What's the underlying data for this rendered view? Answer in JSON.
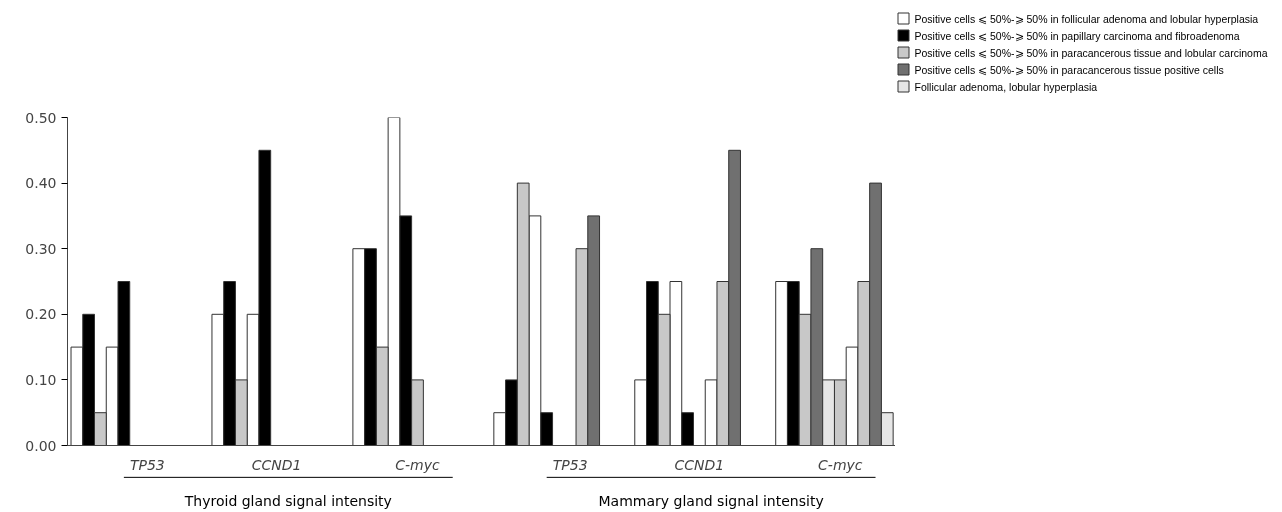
{
  "chart_data": {
    "type": "bar",
    "categories": [
      null,
      null,
      null,
      null,
      null,
      null,
      "TP53",
      null,
      null,
      null,
      null,
      null,
      null,
      null,
      null,
      null,
      null,
      "CCND1",
      null,
      null,
      null,
      null,
      null,
      null,
      null,
      null,
      null,
      null,
      null,
      "C-myc",
      null,
      null,
      null,
      null,
      null,
      null,
      null,
      null,
      null,
      null,
      null,
      null,
      "TP53",
      null,
      null,
      null,
      null,
      null,
      null,
      null,
      null,
      null,
      null,
      "CCND1",
      null,
      null,
      null,
      null,
      null,
      null,
      null,
      null,
      null,
      null,
      null,
      "C-myc",
      null,
      null,
      null,
      null
    ],
    "ylim": [
      0,
      0.5
    ],
    "yticks": [
      {
        "value": 0,
        "label": "0.00"
      },
      {
        "value": 0.1,
        "label": "0.10"
      },
      {
        "value": 0.2,
        "label": "0.20"
      },
      {
        "value": 0.3,
        "label": "0.30"
      },
      {
        "value": 0.4,
        "label": "0.40"
      },
      {
        "value": 0.5,
        "label": "0.50"
      }
    ],
    "series": [
      {
        "name": "Positive cells ⩽ 50%-⩾ 50% in follicular adenoma and lobular hyperplasia",
        "color": "#ffffff",
        "values": [
          0.15,
          null,
          null,
          0.15,
          null,
          null,
          null,
          null,
          null,
          null,
          null,
          null,
          0.2,
          null,
          null,
          0.2,
          null,
          null,
          null,
          null,
          null,
          null,
          null,
          null,
          0.3,
          null,
          null,
          0.5,
          null,
          null,
          null,
          null,
          null,
          null,
          null,
          null,
          0.05,
          null,
          null,
          0.35,
          null,
          null,
          null,
          null,
          null,
          null,
          null,
          null,
          0.1,
          null,
          null,
          0.25,
          null,
          null,
          0.1,
          null,
          null,
          null,
          null,
          null,
          0.25,
          null,
          null,
          null,
          null,
          null,
          0.15,
          null,
          null,
          null
        ]
      },
      {
        "name": "Positive cells ⩽ 50%-⩾ 50% in papillary carcinoma and fibroadenoma",
        "color": "#000000",
        "values": [
          null,
          0.2,
          null,
          null,
          0.25,
          null,
          null,
          null,
          null,
          null,
          null,
          null,
          null,
          0.25,
          null,
          null,
          0.45,
          null,
          null,
          null,
          null,
          null,
          null,
          null,
          null,
          0.3,
          null,
          null,
          0.35,
          null,
          null,
          null,
          null,
          null,
          null,
          null,
          null,
          0.1,
          null,
          null,
          0.05,
          null,
          null,
          null,
          null,
          null,
          null,
          null,
          null,
          0.25,
          null,
          null,
          0.05,
          null,
          null,
          null,
          null,
          null,
          null,
          null,
          null,
          0.25,
          null,
          null,
          null,
          null,
          null,
          null,
          null,
          null
        ]
      },
      {
        "name": "Positive cells ⩽ 50%-⩾ 50% in paracancerous tissue and lobular carcinoma",
        "color": "#c8c8c8",
        "values": [
          null,
          null,
          0.05,
          null,
          null,
          null,
          null,
          null,
          null,
          null,
          null,
          null,
          null,
          null,
          0.1,
          null,
          null,
          null,
          null,
          null,
          null,
          null,
          null,
          null,
          null,
          null,
          0.15,
          null,
          null,
          0.1,
          null,
          null,
          null,
          null,
          null,
          null,
          null,
          null,
          0.4,
          null,
          null,
          null,
          null,
          0.3,
          null,
          null,
          null,
          null,
          null,
          null,
          0.2,
          null,
          null,
          null,
          null,
          0.25,
          null,
          null,
          null,
          null,
          null,
          null,
          0.2,
          null,
          null,
          0.1,
          null,
          0.25,
          null,
          null
        ]
      },
      {
        "name": "Positive cells ⩽ 50%-⩾ 50% in paracancerous tissue positive cells",
        "color": "#707070",
        "values": [
          null,
          null,
          null,
          null,
          null,
          null,
          null,
          null,
          null,
          null,
          null,
          null,
          null,
          null,
          null,
          null,
          null,
          null,
          null,
          null,
          null,
          null,
          null,
          null,
          null,
          null,
          null,
          null,
          null,
          null,
          null,
          null,
          null,
          null,
          null,
          null,
          null,
          null,
          null,
          null,
          null,
          null,
          null,
          null,
          0.35,
          null,
          null,
          null,
          null,
          null,
          null,
          null,
          null,
          null,
          null,
          null,
          0.45,
          null,
          null,
          null,
          null,
          null,
          null,
          0.3,
          null,
          null,
          null,
          null,
          0.4,
          null
        ]
      },
      {
        "name": "Follicular adenoma, lobular hyperplasia",
        "color": "#e6e6e6",
        "values": [
          null,
          null,
          null,
          null,
          null,
          null,
          null,
          null,
          null,
          null,
          null,
          null,
          null,
          null,
          null,
          null,
          null,
          null,
          null,
          null,
          null,
          null,
          null,
          null,
          null,
          null,
          null,
          null,
          null,
          null,
          null,
          null,
          null,
          null,
          null,
          null,
          null,
          null,
          null,
          null,
          null,
          null,
          null,
          null,
          null,
          null,
          null,
          null,
          null,
          null,
          null,
          null,
          null,
          null,
          null,
          null,
          null,
          null,
          null,
          null,
          null,
          null,
          null,
          null,
          0.1,
          null,
          null,
          null,
          null,
          0.05
        ]
      }
    ],
    "annotations": [
      "Thyroid gland signal intensity",
      "Mammary gland signal intensity"
    ],
    "legend": "top right"
  }
}
